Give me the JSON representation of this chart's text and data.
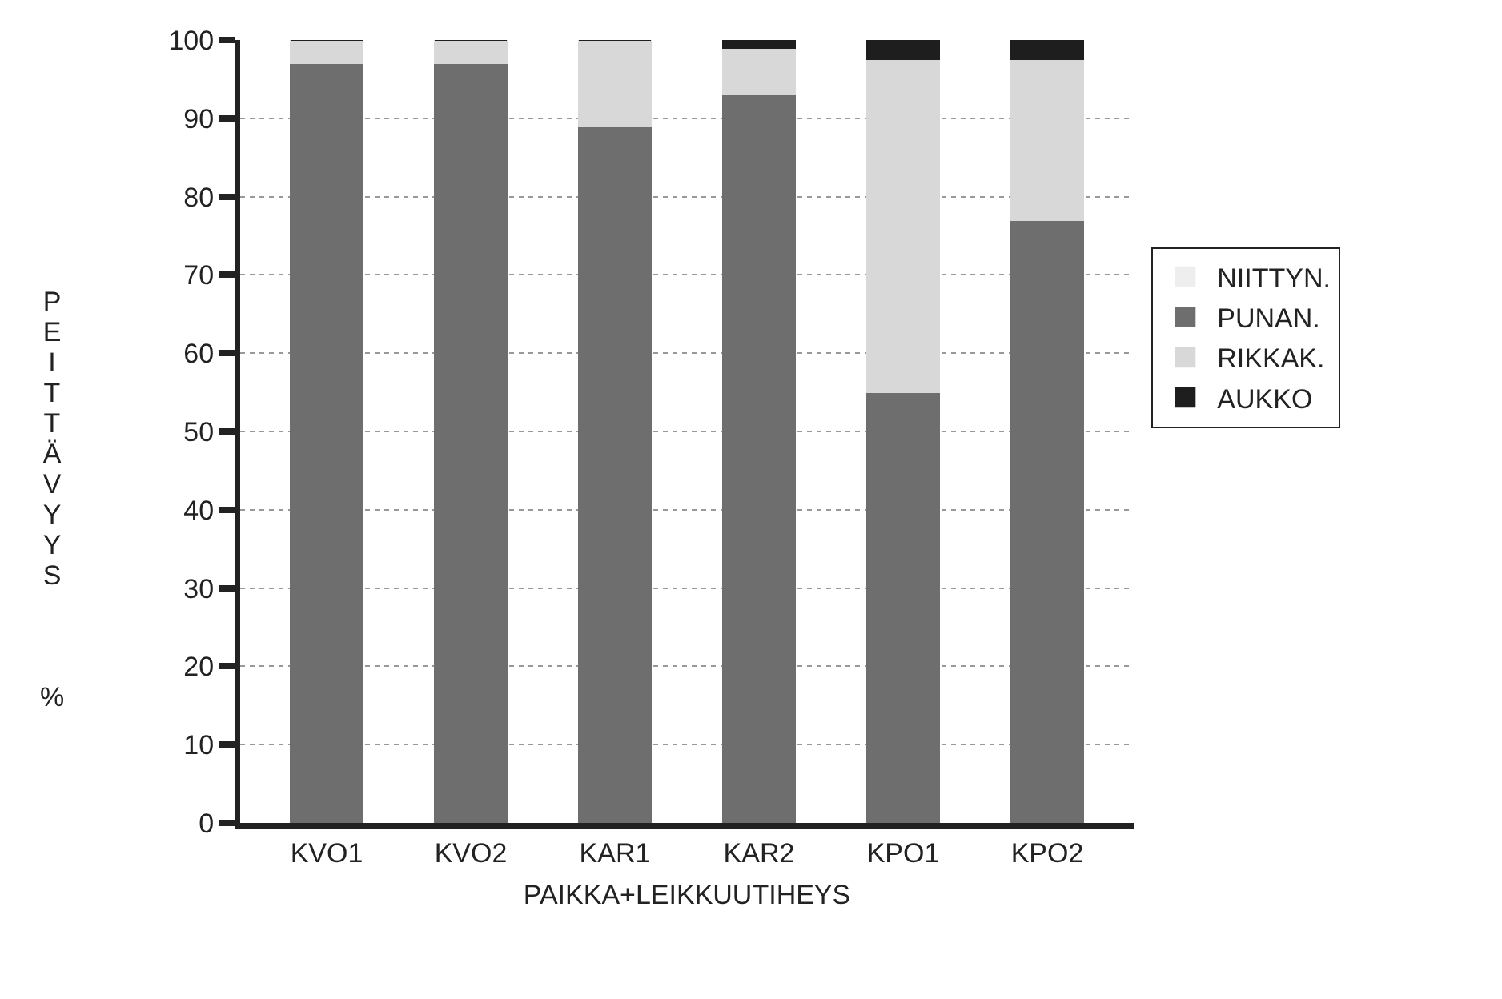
{
  "chart_data": {
    "type": "bar",
    "stacked": true,
    "xlabel": "PAIKKA+LEIKKUUTIHEYS",
    "ylabel": "PEITTÄVYYS   %",
    "categories": [
      "KVO1",
      "KVO2",
      "KAR1",
      "KAR2",
      "KPO1",
      "KPO2"
    ],
    "series": [
      {
        "name": "NIITTYN.",
        "color": "#eeeeee",
        "values": [
          null,
          null,
          null,
          null,
          null,
          null
        ]
      },
      {
        "name": "PUNAN.",
        "color": "#6e6e6e",
        "values": [
          97,
          97,
          89,
          93,
          55,
          77
        ]
      },
      {
        "name": "RIKKAK.",
        "color": "#d8d8d8",
        "values": [
          3,
          3,
          11,
          6,
          42.5,
          20.5
        ]
      },
      {
        "name": "AUKKO",
        "color": "#1e1e1e",
        "values": [
          0,
          0,
          0,
          1,
          2.5,
          2.5
        ]
      }
    ],
    "ylim": [
      0,
      100
    ],
    "yticks": [
      0,
      10,
      20,
      30,
      40,
      50,
      60,
      70,
      80,
      90,
      100
    ],
    "grid": "y",
    "legend": "right"
  }
}
